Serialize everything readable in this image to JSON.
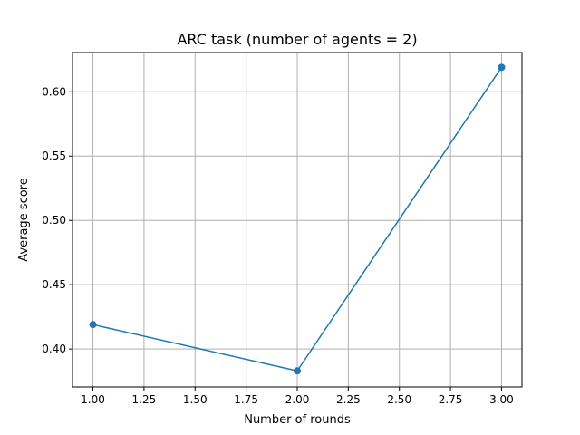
{
  "chart_data": {
    "type": "line",
    "title": "ARC task (number of agents = 2)",
    "xlabel": "Number of rounds",
    "ylabel": "Average score",
    "xlim": [
      0.9,
      3.1
    ],
    "ylim": [
      0.3705,
      0.6305
    ],
    "xticks": [
      1.0,
      1.25,
      1.5,
      1.75,
      2.0,
      2.25,
      2.5,
      2.75,
      3.0
    ],
    "xtick_labels": [
      "1.00",
      "1.25",
      "1.50",
      "1.75",
      "2.00",
      "2.25",
      "2.50",
      "2.75",
      "3.00"
    ],
    "yticks": [
      0.4,
      0.45,
      0.5,
      0.55,
      0.6
    ],
    "ytick_labels": [
      "0.40",
      "0.45",
      "0.50",
      "0.55",
      "0.60"
    ],
    "grid": true,
    "series": [
      {
        "x": [
          1.0,
          2.0,
          3.0
        ],
        "values": [
          0.419,
          0.383,
          0.619
        ],
        "color": "#1f77b4",
        "marker": "circle"
      }
    ]
  }
}
